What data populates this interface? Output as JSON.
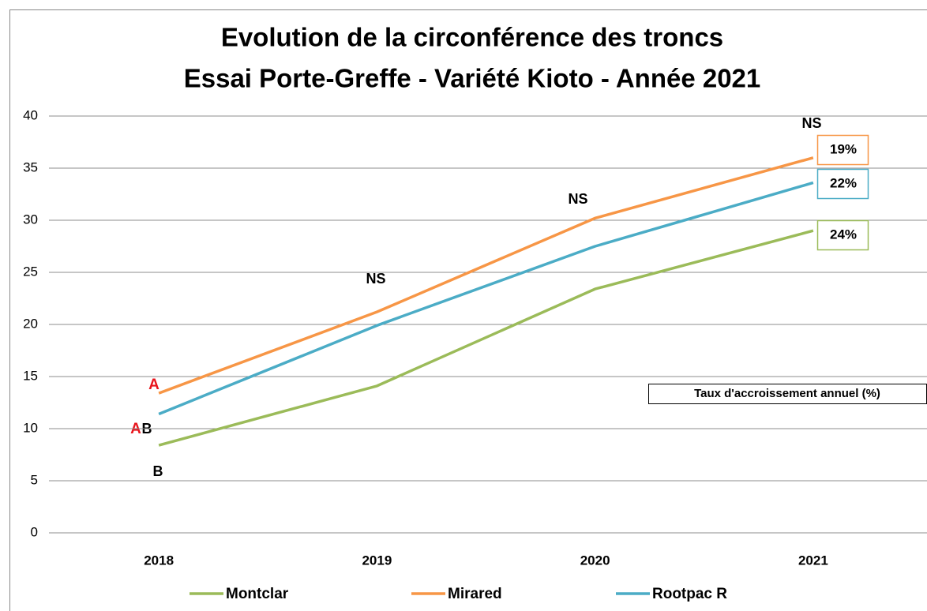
{
  "chart_data": {
    "type": "line",
    "title": "Evolution de la circonférence des troncs",
    "subtitle": "Essai Porte-Greffe - Variété Kioto - Année 2021",
    "categories": [
      "2018",
      "2019",
      "2020",
      "2021"
    ],
    "series": [
      {
        "name": "Montclar",
        "color": "#9bbb59",
        "values": [
          8.4,
          14.1,
          23.4,
          29.0
        ],
        "growth": "24%"
      },
      {
        "name": "Mirared",
        "color": "#f79646",
        "values": [
          13.4,
          21.2,
          30.2,
          36.0
        ],
        "growth": "19%"
      },
      {
        "name": "Rootpac R",
        "color": "#4bacc6",
        "values": [
          11.4,
          19.9,
          27.5,
          33.6
        ],
        "growth": "22%"
      }
    ],
    "ylim": [
      0,
      40
    ],
    "yticks": [
      0,
      5,
      10,
      15,
      20,
      25,
      30,
      35,
      40
    ],
    "grid": true,
    "legend": "bottom",
    "growth_title": "Taux d'accroissement annuel (%)",
    "annotations": [
      "A",
      "A",
      "B",
      "B",
      "NS",
      "NS",
      "NS"
    ]
  }
}
